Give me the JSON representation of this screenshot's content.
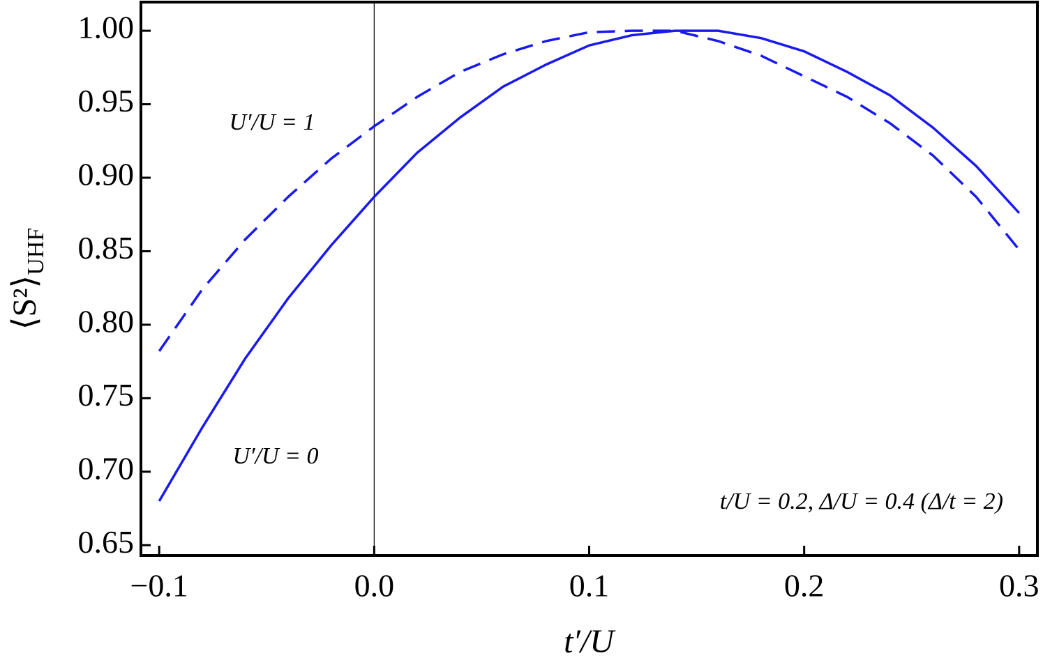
{
  "chart_data": {
    "type": "line",
    "x_label": "t′/U",
    "y_label": "⟨S²⟩",
    "y_label_subscript": "UHF",
    "annotation": "t/U = 0.2, Δ/U = 0.4 (Δ/t = 2)",
    "x": [
      -0.1,
      -0.08,
      -0.06,
      -0.04,
      -0.02,
      0.0,
      0.02,
      0.04,
      0.06,
      0.08,
      0.1,
      0.12,
      0.14,
      0.16,
      0.18,
      0.2,
      0.22,
      0.24,
      0.26,
      0.28,
      0.3
    ],
    "series": [
      {
        "name": "U′/U = 0",
        "color": "#1a1aee",
        "dashed": false,
        "values": [
          0.68,
          0.73,
          0.777,
          0.818,
          0.854,
          0.887,
          0.917,
          0.941,
          0.962,
          0.977,
          0.99,
          0.997,
          1.0,
          1.0,
          0.995,
          0.986,
          0.972,
          0.956,
          0.934,
          0.908,
          0.876
        ]
      },
      {
        "name": "U′/U = 1",
        "color": "#1a1aee",
        "dashed": true,
        "values": [
          0.782,
          0.824,
          0.858,
          0.887,
          0.913,
          0.935,
          0.955,
          0.972,
          0.984,
          0.993,
          0.999,
          1.0,
          1.0,
          0.993,
          0.983,
          0.969,
          0.955,
          0.937,
          0.915,
          0.887,
          0.851
        ]
      }
    ],
    "xlim": [
      -0.1085,
      0.3085
    ],
    "ylim": [
      0.643,
      1.0195
    ],
    "xticks": [
      {
        "value": -0.1,
        "label": "−0.1"
      },
      {
        "value": 0,
        "label": "0.0"
      },
      0.1,
      0.2,
      0.3
    ],
    "yticks": [
      {
        "value": 0.65,
        "label": "0.65"
      },
      {
        "value": 0.7,
        "label": "0.70"
      },
      {
        "value": 0.75,
        "label": "0.75"
      },
      {
        "value": 0.8,
        "label": "0.80"
      },
      {
        "value": 0.85,
        "label": "0.85"
      },
      {
        "value": 0.9,
        "label": "0.90"
      },
      {
        "value": 0.95,
        "label": "0.95"
      },
      {
        "value": 1,
        "label": "1.00"
      }
    ],
    "zero_line": true
  }
}
